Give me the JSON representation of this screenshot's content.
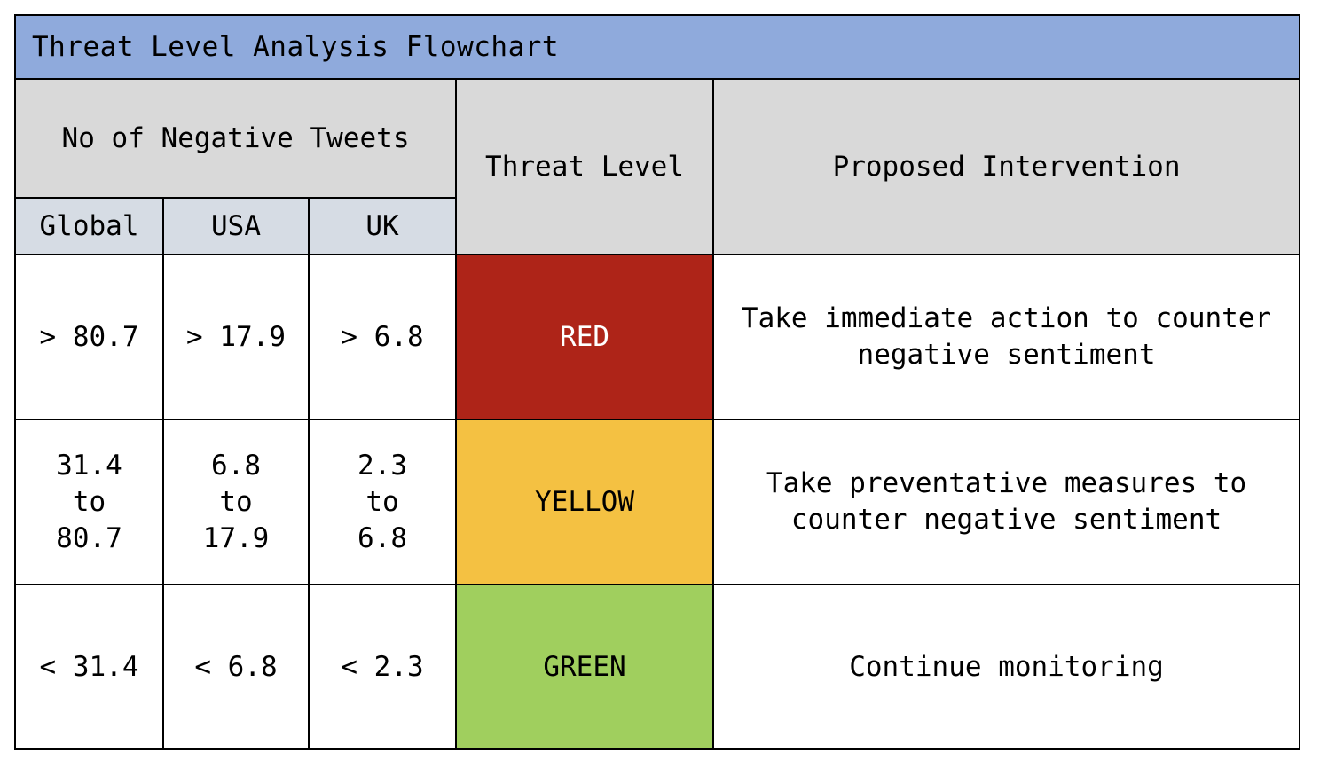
{
  "title": "Threat Level Analysis Flowchart",
  "headers": {
    "tweets_group": "No of Negative Tweets",
    "threat_level": "Threat Level",
    "intervention": "Proposed Intervention",
    "regions": [
      "Global",
      "USA",
      "UK"
    ]
  },
  "rows": [
    {
      "global": "> 80.7",
      "usa": "> 17.9",
      "uk": "> 6.8",
      "level": "RED",
      "level_color": "#ae2418",
      "level_text_color": "#ffffff",
      "intervention": "Take immediate action to counter negative sentiment"
    },
    {
      "global": "31.4 to 80.7",
      "usa": "6.8 to 17.9",
      "uk": "2.3 to 6.8",
      "level": "YELLOW",
      "level_color": "#f4c142",
      "level_text_color": "#000000",
      "intervention": "Take preventative measures to counter negative sentiment"
    },
    {
      "global": "< 31.4",
      "usa": "< 6.8",
      "uk": "< 2.3",
      "level": "GREEN",
      "level_color": "#a0cf5e",
      "level_text_color": "#000000",
      "intervention": "Continue monitoring"
    }
  ]
}
